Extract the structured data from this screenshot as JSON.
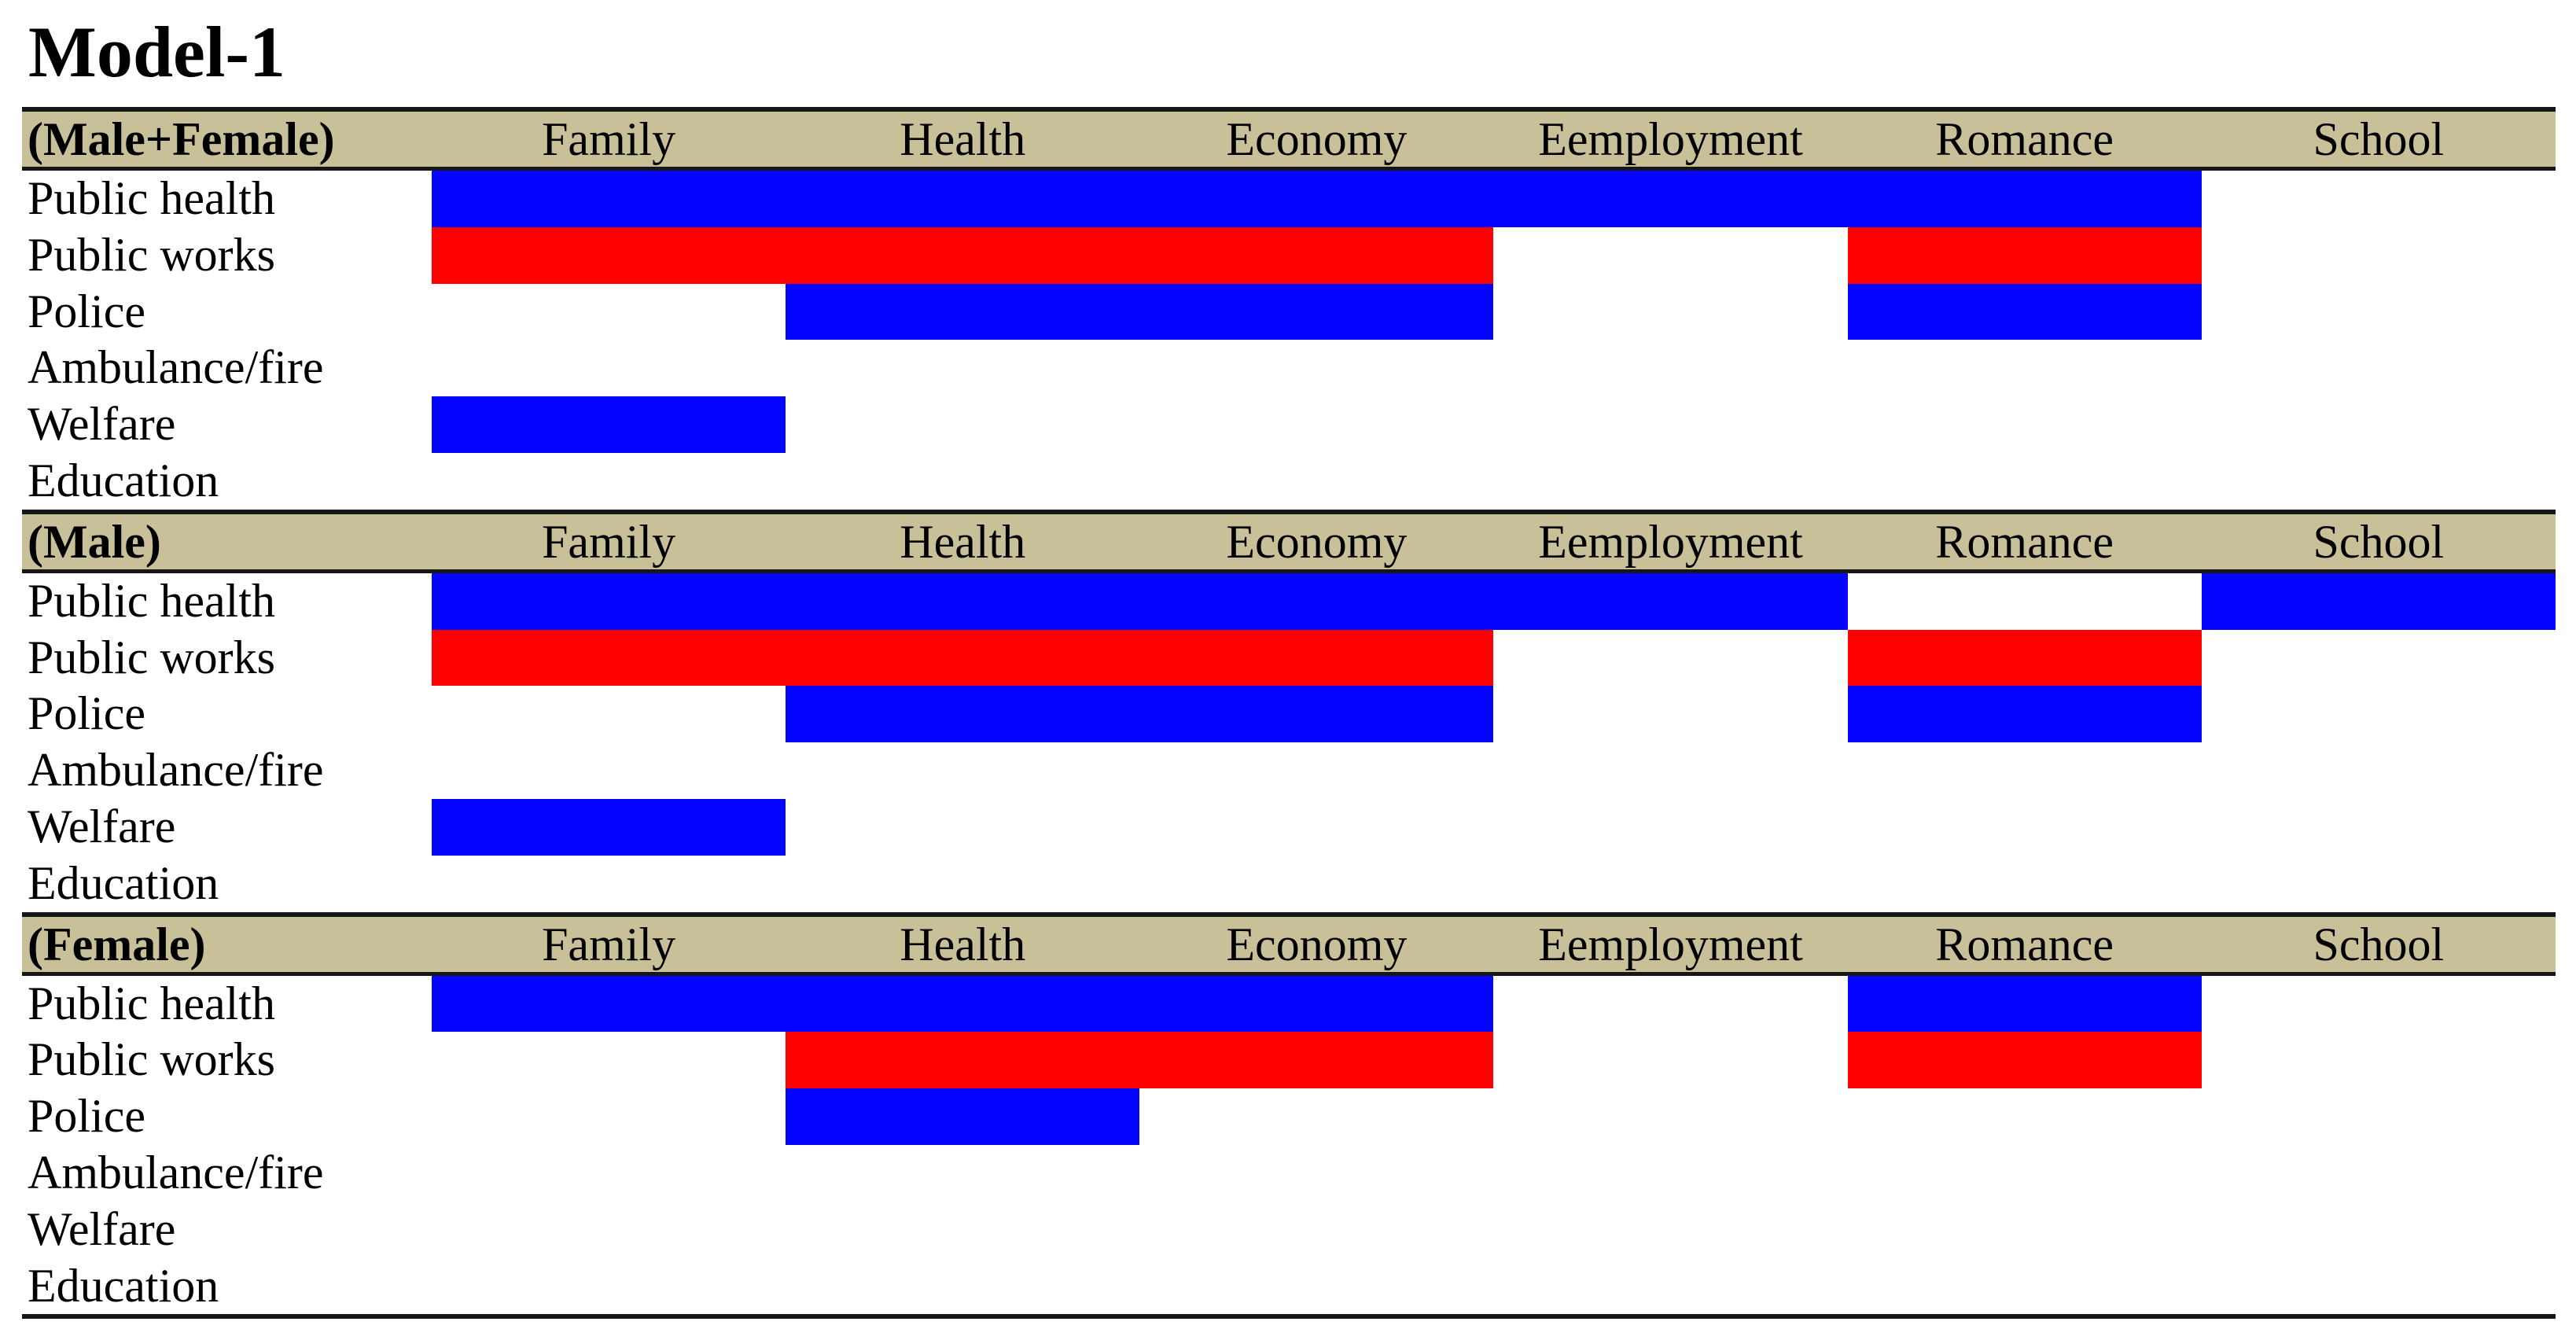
{
  "title": "Model-1",
  "colors": {
    "blue": "#0404ff",
    "red": "#ff0000",
    "header_bg": "#c7c098",
    "rule": "#161616",
    "background": "#ffffff",
    "text": "#000000"
  },
  "columns": [
    "Family",
    "Health",
    "Economy",
    "Eemployment",
    "Romance",
    "School"
  ],
  "row_labels": [
    "Public health",
    "Public works",
    "Police",
    "Ambulance/fire",
    "Welfare",
    "Education"
  ],
  "sections": [
    {
      "label": "(Male+Female)",
      "cells": [
        [
          "blue",
          "blue",
          "blue",
          "blue",
          "blue",
          ""
        ],
        [
          "red",
          "red",
          "red",
          "",
          "red",
          ""
        ],
        [
          "",
          "blue",
          "blue",
          "",
          "blue",
          ""
        ],
        [
          "",
          "",
          "",
          "",
          "",
          ""
        ],
        [
          "blue",
          "",
          "",
          "",
          "",
          ""
        ],
        [
          "",
          "",
          "",
          "",
          "",
          ""
        ]
      ]
    },
    {
      "label": "(Male)",
      "cells": [
        [
          "blue",
          "blue",
          "blue",
          "blue",
          "",
          "blue"
        ],
        [
          "red",
          "red",
          "red",
          "",
          "red",
          ""
        ],
        [
          "",
          "blue",
          "blue",
          "",
          "blue",
          ""
        ],
        [
          "",
          "",
          "",
          "",
          "",
          ""
        ],
        [
          "blue",
          "",
          "",
          "",
          "",
          ""
        ],
        [
          "",
          "",
          "",
          "",
          "",
          ""
        ]
      ]
    },
    {
      "label": "(Female)",
      "cells": [
        [
          "blue",
          "blue",
          "blue",
          "",
          "blue",
          ""
        ],
        [
          "",
          "red",
          "red",
          "",
          "red",
          ""
        ],
        [
          "",
          "blue",
          "",
          "",
          "",
          ""
        ],
        [
          "",
          "",
          "",
          "",
          "",
          ""
        ],
        [
          "",
          "",
          "",
          "",
          "",
          ""
        ],
        [
          "",
          "",
          "",
          "",
          "",
          ""
        ]
      ]
    }
  ],
  "chart_data": {
    "type": "heatmap",
    "title": "Model-1",
    "x_categories": [
      "Family",
      "Health",
      "Economy",
      "Eemployment",
      "Romance",
      "School"
    ],
    "y_categories": [
      "Public health",
      "Public works",
      "Police",
      "Ambulance/fire",
      "Welfare",
      "Education"
    ],
    "legend": [
      "blue = filled blue cell",
      "red = filled red cell",
      "empty = no fill"
    ],
    "series": [
      {
        "name": "(Male+Female)",
        "values": [
          [
            "blue",
            "blue",
            "blue",
            "blue",
            "blue",
            null
          ],
          [
            "red",
            "red",
            "red",
            null,
            "red",
            null
          ],
          [
            null,
            "blue",
            "blue",
            null,
            "blue",
            null
          ],
          [
            null,
            null,
            null,
            null,
            null,
            null
          ],
          [
            "blue",
            null,
            null,
            null,
            null,
            null
          ],
          [
            null,
            null,
            null,
            null,
            null,
            null
          ]
        ]
      },
      {
        "name": "(Male)",
        "values": [
          [
            "blue",
            "blue",
            "blue",
            "blue",
            null,
            "blue"
          ],
          [
            "red",
            "red",
            "red",
            null,
            "red",
            null
          ],
          [
            null,
            "blue",
            "blue",
            null,
            "blue",
            null
          ],
          [
            null,
            null,
            null,
            null,
            null,
            null
          ],
          [
            "blue",
            null,
            null,
            null,
            null,
            null
          ],
          [
            null,
            null,
            null,
            null,
            null,
            null
          ]
        ]
      },
      {
        "name": "(Female)",
        "values": [
          [
            "blue",
            "blue",
            "blue",
            null,
            "blue",
            null
          ],
          [
            null,
            "red",
            "red",
            null,
            "red",
            null
          ],
          [
            null,
            "blue",
            null,
            null,
            null,
            null
          ],
          [
            null,
            null,
            null,
            null,
            null,
            null
          ],
          [
            null,
            null,
            null,
            null,
            null,
            null
          ],
          [
            null,
            null,
            null,
            null,
            null,
            null
          ]
        ]
      }
    ],
    "layout_hints": {
      "grid": false,
      "header_background": "#c7c098",
      "section_separator": "black horizontal rule",
      "cell_colors": {
        "blue": "#0404ff",
        "red": "#ff0000"
      }
    }
  }
}
